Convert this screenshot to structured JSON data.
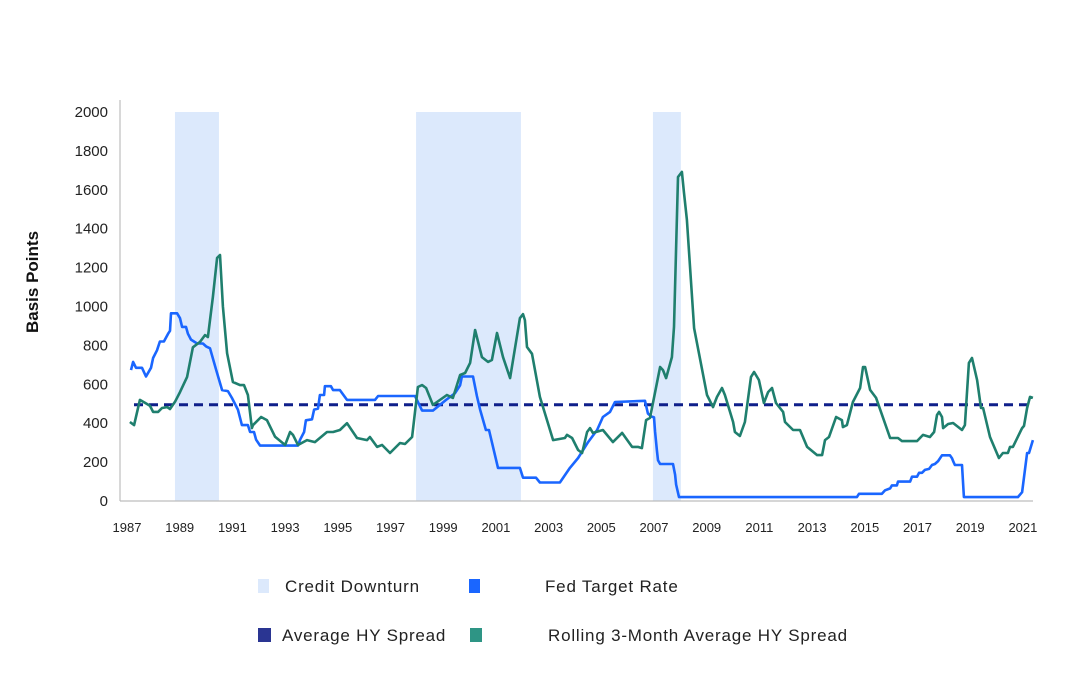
{
  "chart_data": {
    "type": "line",
    "title": "",
    "xlabel": "",
    "ylabel": "Basis Points",
    "ylim": [
      0,
      2000
    ],
    "yticks": [
      0,
      200,
      400,
      600,
      800,
      1000,
      1200,
      1400,
      1600,
      1800,
      2000
    ],
    "xticks": [
      "1987",
      "1989",
      "1991",
      "1993",
      "1995",
      "1997",
      "1999",
      "2001",
      "2003",
      "2005",
      "2007",
      "2009",
      "2011",
      "2013",
      "2015",
      "2017",
      "2019",
      "2021"
    ],
    "grid": false,
    "legend_position": "bottom",
    "colors": {
      "credit_downturn": "#dce9fc",
      "fed_target_rate": "#1a66ff",
      "average_hy_spread": "#0f1f8a",
      "rolling_hy_spread": "#1f7f6e",
      "legend_average": "#2a3592",
      "legend_rolling": "#2e9585"
    },
    "shaded_regions": {
      "name": "Credit Downturn",
      "ranges": [
        [
          1988.82,
          1990.49
        ],
        [
          1997.97,
          2001.95
        ],
        [
          2006.96,
          2008.02
        ]
      ]
    },
    "reference_line": {
      "name": "Average HY Spread",
      "value": 495,
      "style": "dashed"
    },
    "series": [
      {
        "name": "Fed Target Rate",
        "points": [
          [
            1987.15,
            673
          ],
          [
            1987.23,
            715
          ],
          [
            1987.34,
            685
          ],
          [
            1987.57,
            685
          ],
          [
            1987.72,
            640
          ],
          [
            1987.91,
            685
          ],
          [
            1987.99,
            735
          ],
          [
            1988.14,
            775
          ],
          [
            1988.25,
            820
          ],
          [
            1988.4,
            820
          ],
          [
            1988.56,
            860
          ],
          [
            1988.63,
            875
          ],
          [
            1988.67,
            965
          ],
          [
            1988.9,
            965
          ],
          [
            1989.01,
            940
          ],
          [
            1989.09,
            895
          ],
          [
            1989.24,
            895
          ],
          [
            1989.31,
            860
          ],
          [
            1989.43,
            830
          ],
          [
            1989.66,
            810
          ],
          [
            1989.88,
            810
          ],
          [
            1990.0,
            795
          ],
          [
            1990.15,
            785
          ],
          [
            1990.38,
            675
          ],
          [
            1990.61,
            570
          ],
          [
            1990.83,
            565
          ],
          [
            1990.98,
            530
          ],
          [
            1991.21,
            470
          ],
          [
            1991.36,
            390
          ],
          [
            1991.59,
            390
          ],
          [
            1991.67,
            355
          ],
          [
            1991.82,
            355
          ],
          [
            1991.9,
            315
          ],
          [
            1992.05,
            285
          ],
          [
            1993.49,
            285
          ],
          [
            1993.57,
            315
          ],
          [
            1993.72,
            355
          ],
          [
            1993.79,
            415
          ],
          [
            1994.02,
            420
          ],
          [
            1994.1,
            470
          ],
          [
            1994.25,
            475
          ],
          [
            1994.32,
            545
          ],
          [
            1994.48,
            545
          ],
          [
            1994.51,
            590
          ],
          [
            1994.74,
            590
          ],
          [
            1994.82,
            570
          ],
          [
            1995.08,
            570
          ],
          [
            1995.35,
            520
          ],
          [
            1996.41,
            520
          ],
          [
            1996.53,
            540
          ],
          [
            1997.93,
            540
          ],
          [
            1998.2,
            465
          ],
          [
            1998.61,
            465
          ],
          [
            1999.11,
            520
          ],
          [
            1999.45,
            555
          ],
          [
            1999.64,
            595
          ],
          [
            1999.71,
            640
          ],
          [
            2000.13,
            640
          ],
          [
            2000.28,
            540
          ],
          [
            2000.4,
            470
          ],
          [
            2000.62,
            365
          ],
          [
            2000.74,
            365
          ],
          [
            2001.08,
            170
          ],
          [
            2001.91,
            170
          ],
          [
            2002.03,
            120
          ],
          [
            2002.52,
            120
          ],
          [
            2002.67,
            95
          ],
          [
            2003.43,
            95
          ],
          [
            2003.81,
            170
          ],
          [
            2004.12,
            221
          ],
          [
            2004.5,
            303
          ],
          [
            2004.84,
            365
          ],
          [
            2005.06,
            432
          ],
          [
            2005.33,
            458
          ],
          [
            2005.52,
            509
          ],
          [
            2006.66,
            515
          ],
          [
            2006.77,
            450
          ],
          [
            2006.89,
            435
          ],
          [
            2007.0,
            430
          ],
          [
            2007.04,
            355
          ],
          [
            2007.11,
            260
          ],
          [
            2007.15,
            210
          ],
          [
            2007.23,
            190
          ],
          [
            2007.72,
            190
          ],
          [
            2007.8,
            135
          ],
          [
            2007.84,
            85
          ],
          [
            2007.95,
            20
          ],
          [
            2014.7,
            20
          ],
          [
            2014.78,
            37
          ],
          [
            2015.65,
            37
          ],
          [
            2015.77,
            55
          ],
          [
            2015.96,
            65
          ],
          [
            2016.03,
            80
          ],
          [
            2016.22,
            80
          ],
          [
            2016.26,
            100
          ],
          [
            2016.72,
            100
          ],
          [
            2016.79,
            125
          ],
          [
            2016.98,
            125
          ],
          [
            2017.06,
            145
          ],
          [
            2017.17,
            145
          ],
          [
            2017.28,
            160
          ],
          [
            2017.44,
            165
          ],
          [
            2017.55,
            185
          ],
          [
            2017.66,
            190
          ],
          [
            2017.78,
            205
          ],
          [
            2017.93,
            235
          ],
          [
            2018.23,
            235
          ],
          [
            2018.31,
            220
          ],
          [
            2018.35,
            205
          ],
          [
            2018.42,
            185
          ],
          [
            2018.69,
            185
          ],
          [
            2018.76,
            20
          ],
          [
            2020.81,
            20
          ],
          [
            2020.97,
            45
          ],
          [
            2021.16,
            247
          ],
          [
            2021.23,
            247
          ],
          [
            2021.38,
            313
          ]
        ]
      },
      {
        "name": "Rolling 3-Month Average HY Spread",
        "points": [
          [
            1987.11,
            406
          ],
          [
            1987.27,
            390
          ],
          [
            1987.49,
            520
          ],
          [
            1987.68,
            505
          ],
          [
            1987.87,
            490
          ],
          [
            1987.99,
            458
          ],
          [
            1988.18,
            458
          ],
          [
            1988.33,
            478
          ],
          [
            1988.52,
            483
          ],
          [
            1988.63,
            473
          ],
          [
            1988.82,
            510
          ],
          [
            1989.01,
            560
          ],
          [
            1989.28,
            638
          ],
          [
            1989.5,
            790
          ],
          [
            1989.77,
            818
          ],
          [
            1989.96,
            853
          ],
          [
            1990.07,
            843
          ],
          [
            1990.26,
            1050
          ],
          [
            1990.42,
            1250
          ],
          [
            1990.53,
            1265
          ],
          [
            1990.64,
            1000
          ],
          [
            1990.8,
            760
          ],
          [
            1991.02,
            612
          ],
          [
            1991.29,
            596
          ],
          [
            1991.44,
            596
          ],
          [
            1991.59,
            545
          ],
          [
            1991.74,
            375
          ],
          [
            1991.78,
            390
          ],
          [
            1992.09,
            432
          ],
          [
            1992.31,
            416
          ],
          [
            1992.62,
            330
          ],
          [
            1993.0,
            288
          ],
          [
            1993.19,
            355
          ],
          [
            1993.3,
            340
          ],
          [
            1993.49,
            288
          ],
          [
            1993.83,
            313
          ],
          [
            1994.13,
            303
          ],
          [
            1994.59,
            355
          ],
          [
            1994.82,
            355
          ],
          [
            1995.08,
            365
          ],
          [
            1995.35,
            400
          ],
          [
            1995.73,
            324
          ],
          [
            1996.11,
            313
          ],
          [
            1996.22,
            329
          ],
          [
            1996.49,
            278
          ],
          [
            1996.68,
            288
          ],
          [
            1996.98,
            247
          ],
          [
            1997.36,
            298
          ],
          [
            1997.55,
            293
          ],
          [
            1997.82,
            329
          ],
          [
            1998.04,
            586
          ],
          [
            1998.2,
            596
          ],
          [
            1998.35,
            581
          ],
          [
            1998.61,
            494
          ],
          [
            1999.14,
            545
          ],
          [
            1999.37,
            530
          ],
          [
            1999.64,
            648
          ],
          [
            1999.83,
            658
          ],
          [
            2000.02,
            710
          ],
          [
            2000.21,
            879
          ],
          [
            2000.47,
            740
          ],
          [
            2000.7,
            715
          ],
          [
            2000.85,
            725
          ],
          [
            2001.04,
            864
          ],
          [
            2001.27,
            740
          ],
          [
            2001.54,
            632
          ],
          [
            2001.91,
            940
          ],
          [
            2002.03,
            961
          ],
          [
            2002.1,
            930
          ],
          [
            2002.18,
            792
          ],
          [
            2002.37,
            757
          ],
          [
            2002.67,
            535
          ],
          [
            2003.17,
            313
          ],
          [
            2003.62,
            324
          ],
          [
            2003.7,
            340
          ],
          [
            2003.89,
            324
          ],
          [
            2004.12,
            262
          ],
          [
            2004.27,
            247
          ],
          [
            2004.46,
            355
          ],
          [
            2004.57,
            375
          ],
          [
            2004.68,
            350
          ],
          [
            2005.06,
            365
          ],
          [
            2005.44,
            303
          ],
          [
            2005.79,
            350
          ],
          [
            2006.17,
            278
          ],
          [
            2006.39,
            278
          ],
          [
            2006.54,
            272
          ],
          [
            2006.7,
            416
          ],
          [
            2006.85,
            427
          ],
          [
            2007.23,
            689
          ],
          [
            2007.34,
            673
          ],
          [
            2007.46,
            632
          ],
          [
            2007.68,
            740
          ],
          [
            2007.76,
            895
          ],
          [
            2007.91,
            1666
          ],
          [
            2008.06,
            1692
          ],
          [
            2008.14,
            1584
          ],
          [
            2008.25,
            1445
          ],
          [
            2008.52,
            889
          ],
          [
            2009.01,
            545
          ],
          [
            2009.24,
            483
          ],
          [
            2009.39,
            535
          ],
          [
            2009.58,
            581
          ],
          [
            2009.69,
            545
          ],
          [
            2010.0,
            406
          ],
          [
            2010.07,
            355
          ],
          [
            2010.26,
            334
          ],
          [
            2010.45,
            406
          ],
          [
            2010.68,
            638
          ],
          [
            2010.8,
            663
          ],
          [
            2010.98,
            622
          ],
          [
            2011.17,
            504
          ],
          [
            2011.33,
            560
          ],
          [
            2011.48,
            581
          ],
          [
            2011.63,
            504
          ],
          [
            2011.9,
            458
          ],
          [
            2011.97,
            406
          ],
          [
            2012.28,
            365
          ],
          [
            2012.54,
            365
          ],
          [
            2012.81,
            278
          ],
          [
            2013.19,
            236
          ],
          [
            2013.38,
            236
          ],
          [
            2013.49,
            313
          ],
          [
            2013.64,
            329
          ],
          [
            2013.91,
            432
          ],
          [
            2014.13,
            416
          ],
          [
            2014.17,
            380
          ],
          [
            2014.32,
            390
          ],
          [
            2014.55,
            509
          ],
          [
            2014.82,
            581
          ],
          [
            2014.93,
            689
          ],
          [
            2015.01,
            689
          ],
          [
            2015.2,
            571
          ],
          [
            2015.43,
            530
          ],
          [
            2015.96,
            324
          ],
          [
            2016.26,
            324
          ],
          [
            2016.41,
            308
          ],
          [
            2016.98,
            308
          ],
          [
            2017.21,
            340
          ],
          [
            2017.47,
            329
          ],
          [
            2017.63,
            355
          ],
          [
            2017.74,
            442
          ],
          [
            2017.82,
            458
          ],
          [
            2017.93,
            432
          ],
          [
            2017.97,
            375
          ],
          [
            2018.16,
            396
          ],
          [
            2018.35,
            401
          ],
          [
            2018.69,
            365
          ],
          [
            2018.8,
            390
          ],
          [
            2018.95,
            710
          ],
          [
            2019.07,
            735
          ],
          [
            2019.26,
            622
          ],
          [
            2019.41,
            478
          ],
          [
            2019.49,
            478
          ],
          [
            2019.75,
            329
          ],
          [
            2020.09,
            221
          ],
          [
            2020.24,
            247
          ],
          [
            2020.43,
            247
          ],
          [
            2020.51,
            278
          ],
          [
            2020.62,
            278
          ],
          [
            2020.97,
            375
          ],
          [
            2021.04,
            386
          ],
          [
            2021.16,
            478
          ],
          [
            2021.27,
            535
          ],
          [
            2021.38,
            530
          ]
        ]
      }
    ],
    "legend": [
      {
        "label": "Credit Downturn",
        "color_key": "credit_downturn"
      },
      {
        "label": "Fed Target Rate",
        "color_key": "fed_target_rate"
      },
      {
        "label": "Average HY Spread",
        "color_key": "legend_average"
      },
      {
        "label": "Rolling 3-Month Average HY Spread",
        "color_key": "legend_rolling"
      }
    ]
  }
}
